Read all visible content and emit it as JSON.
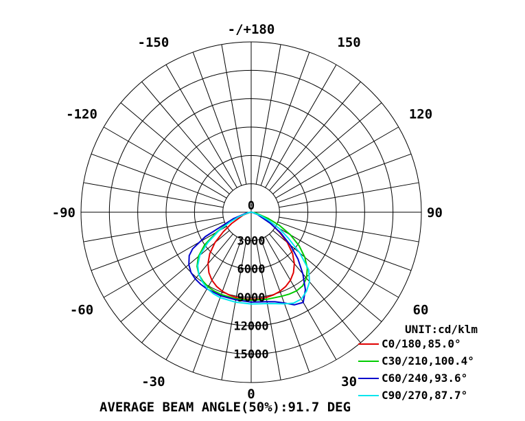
{
  "chart_data": {
    "type": "polar",
    "angle_labels": [
      {
        "angle": 180,
        "text": "-/+180"
      },
      {
        "angle": -150,
        "text": "-150"
      },
      {
        "angle": 150,
        "text": "150"
      },
      {
        "angle": -120,
        "text": "-120"
      },
      {
        "angle": 120,
        "text": "120"
      },
      {
        "angle": -90,
        "text": "-90"
      },
      {
        "angle": 90,
        "text": "90"
      },
      {
        "angle": -60,
        "text": "-60"
      },
      {
        "angle": 60,
        "text": "60"
      },
      {
        "angle": -30,
        "text": "-30"
      },
      {
        "angle": 30,
        "text": "30"
      },
      {
        "angle": 0,
        "text": "0"
      }
    ],
    "radial_ticks": [
      0,
      3000,
      6000,
      9000,
      12000,
      15000
    ],
    "radial_labels": [
      "0",
      "3000",
      "6000",
      "9000",
      "12000",
      "15000"
    ],
    "r_max": 18000,
    "unit_label": "UNIT:cd/klm",
    "footer": "AVERAGE BEAM ANGLE(50%):91.7 DEG",
    "series": [
      {
        "name": "C0/180,85.0°",
        "color": "#e00000",
        "points": [
          [
            -90,
            0
          ],
          [
            -80,
            200
          ],
          [
            -70,
            900
          ],
          [
            -60,
            2400
          ],
          [
            -55,
            3600
          ],
          [
            -50,
            5000
          ],
          [
            -45,
            6200
          ],
          [
            -40,
            7100
          ],
          [
            -35,
            7800
          ],
          [
            -30,
            8300
          ],
          [
            -25,
            8650
          ],
          [
            -20,
            8900
          ],
          [
            -15,
            9050
          ],
          [
            -10,
            9150
          ],
          [
            -5,
            9200
          ],
          [
            0,
            9200
          ],
          [
            5,
            9200
          ],
          [
            10,
            9150
          ],
          [
            15,
            9050
          ],
          [
            20,
            8900
          ],
          [
            25,
            8650
          ],
          [
            30,
            8300
          ],
          [
            35,
            7800
          ],
          [
            40,
            7100
          ],
          [
            45,
            6200
          ],
          [
            50,
            5000
          ],
          [
            55,
            3600
          ],
          [
            60,
            2400
          ],
          [
            70,
            900
          ],
          [
            80,
            200
          ],
          [
            90,
            0
          ]
        ]
      },
      {
        "name": "C30/210,100.4°",
        "color": "#00cc00",
        "points": [
          [
            -90,
            0
          ],
          [
            -80,
            400
          ],
          [
            -70,
            1600
          ],
          [
            -65,
            2700
          ],
          [
            -60,
            4200
          ],
          [
            -55,
            6000
          ],
          [
            -50,
            7300
          ],
          [
            -45,
            8100
          ],
          [
            -40,
            8600
          ],
          [
            -35,
            8900
          ],
          [
            -30,
            9100
          ],
          [
            -25,
            9200
          ],
          [
            -20,
            9250
          ],
          [
            -10,
            9300
          ],
          [
            0,
            9300
          ],
          [
            10,
            9350
          ],
          [
            20,
            9450
          ],
          [
            25,
            9550
          ],
          [
            30,
            9600
          ],
          [
            35,
            9500
          ],
          [
            40,
            9100
          ],
          [
            45,
            8400
          ],
          [
            50,
            7400
          ],
          [
            55,
            6200
          ],
          [
            60,
            4800
          ],
          [
            65,
            3300
          ],
          [
            70,
            1900
          ],
          [
            80,
            500
          ],
          [
            90,
            0
          ]
        ]
      },
      {
        "name": "C60/240,93.6°",
        "color": "#0000cc",
        "points": [
          [
            -90,
            0
          ],
          [
            -80,
            500
          ],
          [
            -70,
            2000
          ],
          [
            -65,
            3300
          ],
          [
            -62,
            5500
          ],
          [
            -58,
            7300
          ],
          [
            -55,
            8000
          ],
          [
            -50,
            8600
          ],
          [
            -45,
            9000
          ],
          [
            -40,
            9200
          ],
          [
            -35,
            9300
          ],
          [
            -30,
            9350
          ],
          [
            -20,
            9400
          ],
          [
            -10,
            9400
          ],
          [
            0,
            9500
          ],
          [
            10,
            9600
          ],
          [
            15,
            9800
          ],
          [
            20,
            10200
          ],
          [
            25,
            10800
          ],
          [
            30,
            11000
          ],
          [
            35,
            10000
          ],
          [
            40,
            8500
          ],
          [
            45,
            7000
          ],
          [
            50,
            5400
          ],
          [
            55,
            3800
          ],
          [
            60,
            2300
          ],
          [
            70,
            700
          ],
          [
            80,
            100
          ],
          [
            90,
            0
          ]
        ]
      },
      {
        "name": "C90/270,87.7°",
        "color": "#00e5ee",
        "points": [
          [
            -90,
            0
          ],
          [
            -80,
            300
          ],
          [
            -70,
            1400
          ],
          [
            -65,
            2500
          ],
          [
            -60,
            4000
          ],
          [
            -55,
            5600
          ],
          [
            -50,
            7100
          ],
          [
            -45,
            8000
          ],
          [
            -40,
            8600
          ],
          [
            -35,
            9000
          ],
          [
            -30,
            9300
          ],
          [
            -25,
            9500
          ],
          [
            -20,
            9600
          ],
          [
            -10,
            9650
          ],
          [
            0,
            9700
          ],
          [
            10,
            9800
          ],
          [
            15,
            10000
          ],
          [
            20,
            10300
          ],
          [
            25,
            10600
          ],
          [
            30,
            10600
          ],
          [
            35,
            10200
          ],
          [
            40,
            9600
          ],
          [
            45,
            8600
          ],
          [
            50,
            6700
          ],
          [
            55,
            4800
          ],
          [
            60,
            3400
          ],
          [
            65,
            2000
          ],
          [
            70,
            1100
          ],
          [
            80,
            200
          ],
          [
            90,
            0
          ]
        ]
      }
    ]
  }
}
